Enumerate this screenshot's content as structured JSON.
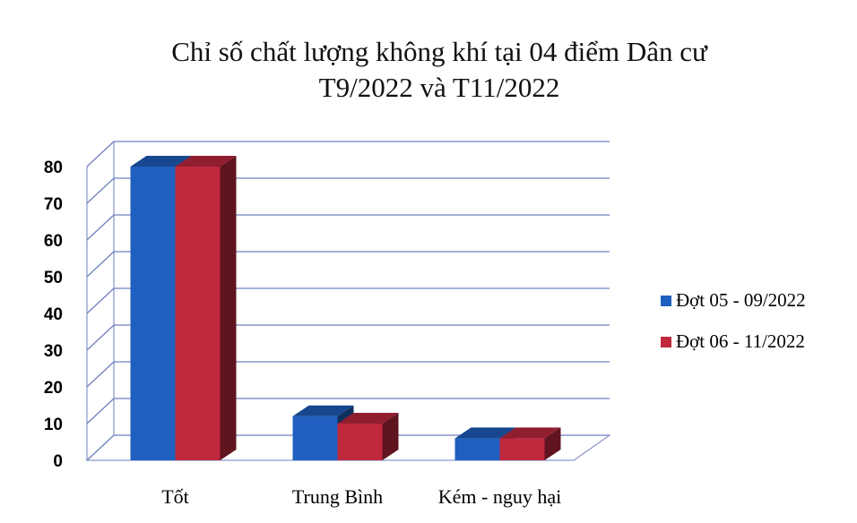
{
  "chart_data": {
    "type": "bar3d",
    "title": "Chỉ số chất lượng không khí tại 04 điểm Dân cư\nT9/2022 và T11/2022",
    "categories": [
      "Tốt",
      "Trung Bình",
      "Kém - nguy hại"
    ],
    "series": [
      {
        "name": "Đợt 05 - 09/2022",
        "color": "#1f5fbf",
        "values": [
          80,
          12,
          6
        ]
      },
      {
        "name": "Đợt 06 - 11/2022",
        "color": "#c0283e",
        "values": [
          80,
          10,
          6
        ]
      }
    ],
    "ylim": [
      0,
      80
    ],
    "yticks": [
      0,
      10,
      20,
      30,
      40,
      50,
      60,
      70,
      80
    ],
    "grid": true,
    "legend": "right"
  }
}
